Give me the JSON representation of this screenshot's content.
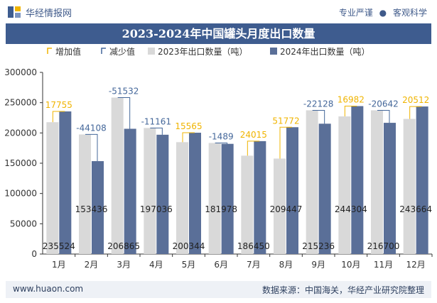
{
  "header": {
    "brand": "华经情报网",
    "tag_1": "专业严谨",
    "tag_2": "客观科学"
  },
  "footer": {
    "website": "www.huaon.com",
    "source": "数据来源：中国海关，华经产业研究院整理"
  },
  "colors": {
    "bar_2023": "#d9d9d9",
    "bar_2024": "#5a6f98",
    "increase": "#f0b400",
    "decrease": "#44679a",
    "title_bg": "#3e5c8f"
  },
  "chart_data": {
    "type": "bar",
    "title": "2023-2024年中国罐头月度出口数量",
    "categories": [
      "1月",
      "2月",
      "3月",
      "4月",
      "5月",
      "6月",
      "7月",
      "8月",
      "9月",
      "10月",
      "11月",
      "12月"
    ],
    "series": [
      {
        "name": "2023年出口数量（吨）",
        "values": [
          217769,
          197544,
          258397,
          208197,
          184779,
          183467,
          162435,
          157675,
          237364,
          227322,
          237342,
          223152
        ]
      },
      {
        "name": "2024年出口数量（吨）",
        "values": [
          235524,
          153436,
          206865,
          197036,
          200344,
          181978,
          186450,
          209447,
          215236,
          244304,
          216700,
          243664
        ]
      }
    ],
    "differences": [
      17755,
      -44108,
      -51532,
      -11161,
      15565,
      -1489,
      24015,
      51772,
      -22128,
      16982,
      -20642,
      20512
    ],
    "difference_labels": [
      "17755",
      "-44108",
      "-51532",
      "-11161",
      "15565",
      "-1489",
      "24015",
      "51772",
      "-22128",
      "16982",
      "-20642",
      "20512"
    ],
    "value_labels_2024": [
      "235524",
      "153436",
      "206865",
      "197036",
      "200344",
      "181978",
      "186450",
      "209447",
      "215236",
      "244304",
      "216700",
      "243664"
    ],
    "legend": [
      "增加值",
      "减少值",
      "2023年出口数量（吨）",
      "2024年出口数量（吨）"
    ],
    "legend_placement": "top-left",
    "ylim": [
      0,
      300000
    ],
    "yticks": [
      "0",
      "50000",
      "100000",
      "150000",
      "200000",
      "250000",
      "300000"
    ],
    "grid": false
  }
}
